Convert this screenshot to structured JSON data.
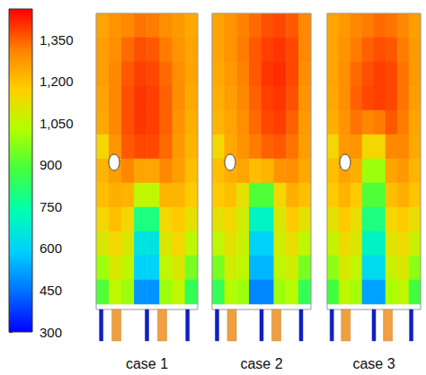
{
  "chart_data": [
    {
      "type": "heatmap",
      "title": "case 1",
      "tick_labels": false,
      "values": [
        [
          1250,
          1280,
          1300,
          1330,
          1320,
          1290,
          1270,
          1240
        ],
        [
          1260,
          1290,
          1340,
          1370,
          1360,
          1320,
          1280,
          1250
        ],
        [
          1260,
          1300,
          1360,
          1390,
          1380,
          1340,
          1290,
          1250
        ],
        [
          1250,
          1300,
          1370,
          1400,
          1390,
          1350,
          1290,
          1240
        ],
        [
          1240,
          1300,
          1370,
          1400,
          1390,
          1350,
          1280,
          1230
        ],
        [
          1150,
          1280,
          1360,
          1380,
          1380,
          1340,
          1270,
          1220
        ],
        [
          1220,
          1260,
          1300,
          1250,
          1250,
          1300,
          1260,
          1200
        ],
        [
          1200,
          1230,
          1220,
          1050,
          1050,
          1220,
          1220,
          1180
        ],
        [
          1150,
          1200,
          1150,
          800,
          800,
          1150,
          1180,
          1120
        ],
        [
          1100,
          1150,
          1100,
          650,
          650,
          1100,
          1150,
          1050
        ],
        [
          1000,
          1100,
          1050,
          600,
          600,
          1050,
          1100,
          950
        ],
        [
          900,
          1050,
          1000,
          500,
          500,
          1000,
          1050,
          850
        ]
      ]
    },
    {
      "type": "heatmap",
      "title": "case 2",
      "tick_labels": false,
      "values": [
        [
          1250,
          1280,
          1310,
          1340,
          1370,
          1380,
          1360,
          1300
        ],
        [
          1250,
          1280,
          1320,
          1360,
          1390,
          1400,
          1380,
          1300
        ],
        [
          1240,
          1270,
          1310,
          1360,
          1400,
          1410,
          1380,
          1290
        ],
        [
          1230,
          1260,
          1300,
          1350,
          1390,
          1400,
          1370,
          1280
        ],
        [
          1220,
          1250,
          1290,
          1340,
          1380,
          1390,
          1350,
          1270
        ],
        [
          1150,
          1240,
          1280,
          1320,
          1350,
          1360,
          1330,
          1260
        ],
        [
          1200,
          1230,
          1250,
          1200,
          1220,
          1280,
          1290,
          1240
        ],
        [
          1180,
          1200,
          1120,
          900,
          900,
          1150,
          1230,
          1200
        ],
        [
          1120,
          1150,
          1080,
          700,
          700,
          1100,
          1180,
          1120
        ],
        [
          1050,
          1120,
          1070,
          600,
          600,
          1080,
          1130,
          1050
        ],
        [
          950,
          1080,
          1050,
          550,
          550,
          1050,
          1080,
          950
        ],
        [
          850,
          1030,
          1000,
          480,
          480,
          1000,
          1030,
          850
        ]
      ]
    },
    {
      "type": "heatmap",
      "title": "case 3",
      "tick_labels": false,
      "values": [
        [
          1250,
          1270,
          1300,
          1320,
          1340,
          1330,
          1300,
          1260
        ],
        [
          1250,
          1280,
          1320,
          1350,
          1370,
          1360,
          1320,
          1270
        ],
        [
          1250,
          1290,
          1340,
          1370,
          1390,
          1380,
          1330,
          1270
        ],
        [
          1240,
          1290,
          1350,
          1380,
          1390,
          1380,
          1330,
          1260
        ],
        [
          1230,
          1280,
          1330,
          1300,
          1320,
          1360,
          1320,
          1250
        ],
        [
          1150,
          1270,
          1280,
          1150,
          1150,
          1300,
          1300,
          1240
        ],
        [
          1200,
          1250,
          1230,
          1000,
          1000,
          1250,
          1270,
          1220
        ],
        [
          1180,
          1220,
          1180,
          900,
          900,
          1200,
          1230,
          1190
        ],
        [
          1120,
          1180,
          1130,
          800,
          800,
          1150,
          1180,
          1130
        ],
        [
          1060,
          1140,
          1100,
          700,
          700,
          1110,
          1140,
          1070
        ],
        [
          980,
          1100,
          1060,
          620,
          620,
          1070,
          1100,
          980
        ],
        [
          880,
          1050,
          1010,
          520,
          520,
          1020,
          1050,
          880
        ]
      ]
    }
  ],
  "colorbar": {
    "range": [
      300,
      1460
    ],
    "ticks": [
      300,
      450,
      600,
      750,
      900,
      1050,
      1200,
      1350
    ]
  }
}
